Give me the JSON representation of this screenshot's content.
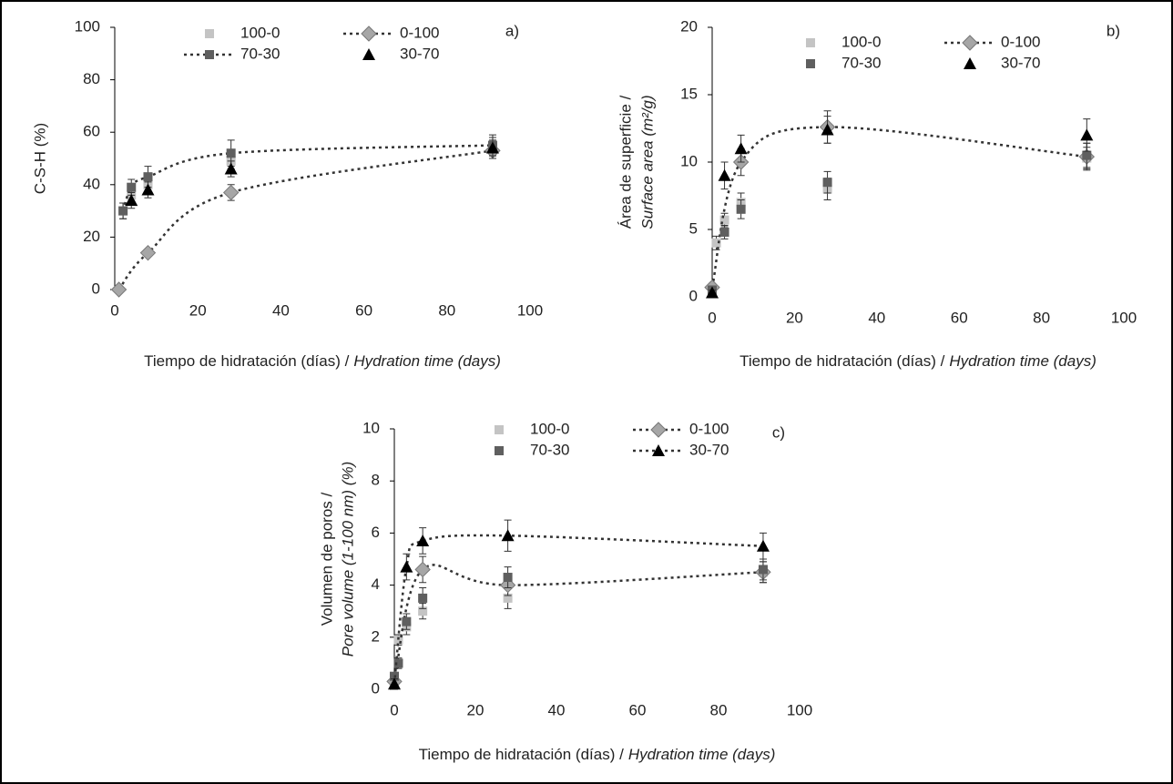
{
  "chart_data": [
    {
      "type": "scatter",
      "panel": "a)",
      "ylabel": "C-S-H (%)",
      "xlabel": "Tiempo de hidratación (días) /",
      "xlabel_italic": "Hydration time (days)",
      "xlim": [
        0,
        100
      ],
      "xticks": [
        0,
        20,
        40,
        60,
        80,
        100
      ],
      "ylim": [
        0,
        100
      ],
      "yticks": [
        0,
        20,
        40,
        60,
        80,
        100
      ],
      "series": [
        {
          "name": "100-0",
          "marker": "square",
          "color": "#c4c4c4",
          "trendline": false,
          "x": [
            2,
            4,
            8,
            28,
            91
          ],
          "values": [
            30,
            36,
            40,
            49,
            54
          ],
          "errors": [
            3,
            3,
            3,
            3,
            3
          ]
        },
        {
          "name": "0-100",
          "marker": "diamond",
          "color": "#a6a6a6",
          "trendline": true,
          "x": [
            1,
            8,
            28,
            91
          ],
          "values": [
            0,
            14,
            37,
            53
          ],
          "errors": [
            1,
            1,
            3,
            3
          ]
        },
        {
          "name": "70-30",
          "marker": "square",
          "color": "#5f5f5f",
          "trendline": true,
          "x": [
            2,
            4,
            8,
            28,
            91
          ],
          "values": [
            30,
            39,
            43,
            52,
            55
          ],
          "errors": [
            3,
            3,
            4,
            5,
            4
          ]
        },
        {
          "name": "30-70",
          "marker": "triangle",
          "color": "#000000",
          "trendline": false,
          "x": [
            4,
            8,
            28,
            91
          ],
          "values": [
            34,
            38,
            46,
            54
          ],
          "errors": [
            3,
            3,
            3,
            4
          ]
        }
      ]
    },
    {
      "type": "scatter",
      "panel": "b)",
      "ylabel": "Área de superficie /",
      "ylabel_italic": "Surface area (m²/g)",
      "xlabel": "Tiempo de hidratación (días) /",
      "xlabel_italic": "Hydration time (days)",
      "xlim": [
        0,
        100
      ],
      "xticks": [
        0,
        20,
        40,
        60,
        80,
        100
      ],
      "ylim": [
        0,
        20
      ],
      "yticks": [
        0,
        5,
        10,
        15,
        20
      ],
      "series": [
        {
          "name": "100-0",
          "marker": "square",
          "color": "#c4c4c4",
          "trendline": false,
          "x": [
            0,
            1,
            3,
            7,
            28,
            91
          ],
          "values": [
            0.5,
            4,
            5.7,
            7,
            8,
            10.3
          ],
          "errors": [
            0.3,
            0.5,
            0.5,
            0.7,
            0.8,
            0.8
          ]
        },
        {
          "name": "0-100",
          "marker": "diamond",
          "color": "#a6a6a6",
          "trendline": true,
          "x": [
            0,
            7,
            28,
            91
          ],
          "values": [
            0.7,
            10,
            12.6,
            10.4
          ],
          "errors": [
            0.3,
            1,
            1.2,
            1
          ]
        },
        {
          "name": "70-30",
          "marker": "square",
          "color": "#5f5f5f",
          "trendline": false,
          "x": [
            0,
            3,
            7,
            28,
            91
          ],
          "values": [
            0.5,
            4.8,
            6.5,
            8.5,
            10.5
          ],
          "errors": [
            0.3,
            0.5,
            0.7,
            0.8,
            0.9
          ]
        },
        {
          "name": "30-70",
          "marker": "triangle",
          "color": "#000000",
          "trendline": false,
          "x": [
            0,
            3,
            7,
            28,
            91
          ],
          "values": [
            0.3,
            9,
            11,
            12.4,
            12
          ],
          "errors": [
            0.2,
            1,
            1,
            1,
            1.2
          ]
        }
      ]
    },
    {
      "type": "scatter",
      "panel": "c)",
      "ylabel": "Volumen de poros /",
      "ylabel_italic": "Pore volume (1-100 nm) (%)",
      "xlabel": "Tiempo de hidratación (días) /",
      "xlabel_italic": "Hydration time (days)",
      "xlim": [
        0,
        100
      ],
      "xticks": [
        0,
        20,
        40,
        60,
        80,
        100
      ],
      "ylim": [
        0,
        10
      ],
      "yticks": [
        0,
        2,
        4,
        6,
        8,
        10
      ],
      "series": [
        {
          "name": "100-0",
          "marker": "square",
          "color": "#c4c4c4",
          "trendline": false,
          "x": [
            0,
            1,
            3,
            7,
            28,
            91
          ],
          "values": [
            0.3,
            1.9,
            2.4,
            3,
            3.5,
            4.5
          ],
          "errors": [
            0.1,
            0.2,
            0.3,
            0.3,
            0.4,
            0.4
          ]
        },
        {
          "name": "0-100",
          "marker": "diamond",
          "color": "#a6a6a6",
          "trendline": true,
          "x": [
            0,
            7,
            28,
            91
          ],
          "values": [
            0.3,
            4.6,
            4,
            4.5
          ],
          "errors": [
            0.2,
            0.5,
            0.4,
            0.4
          ]
        },
        {
          "name": "70-30",
          "marker": "square",
          "color": "#5f5f5f",
          "trendline": false,
          "x": [
            0,
            1,
            3,
            7,
            28,
            91
          ],
          "values": [
            0.5,
            1,
            2.6,
            3.5,
            4.3,
            4.6
          ],
          "errors": [
            0.1,
            0.2,
            0.3,
            0.4,
            0.4,
            0.4
          ]
        },
        {
          "name": "30-70",
          "marker": "triangle",
          "color": "#000000",
          "trendline": true,
          "x": [
            0,
            3,
            7,
            28,
            91
          ],
          "values": [
            0.2,
            4.7,
            5.7,
            5.9,
            5.5
          ],
          "errors": [
            0.2,
            0.5,
            0.5,
            0.6,
            0.5
          ]
        }
      ]
    }
  ]
}
